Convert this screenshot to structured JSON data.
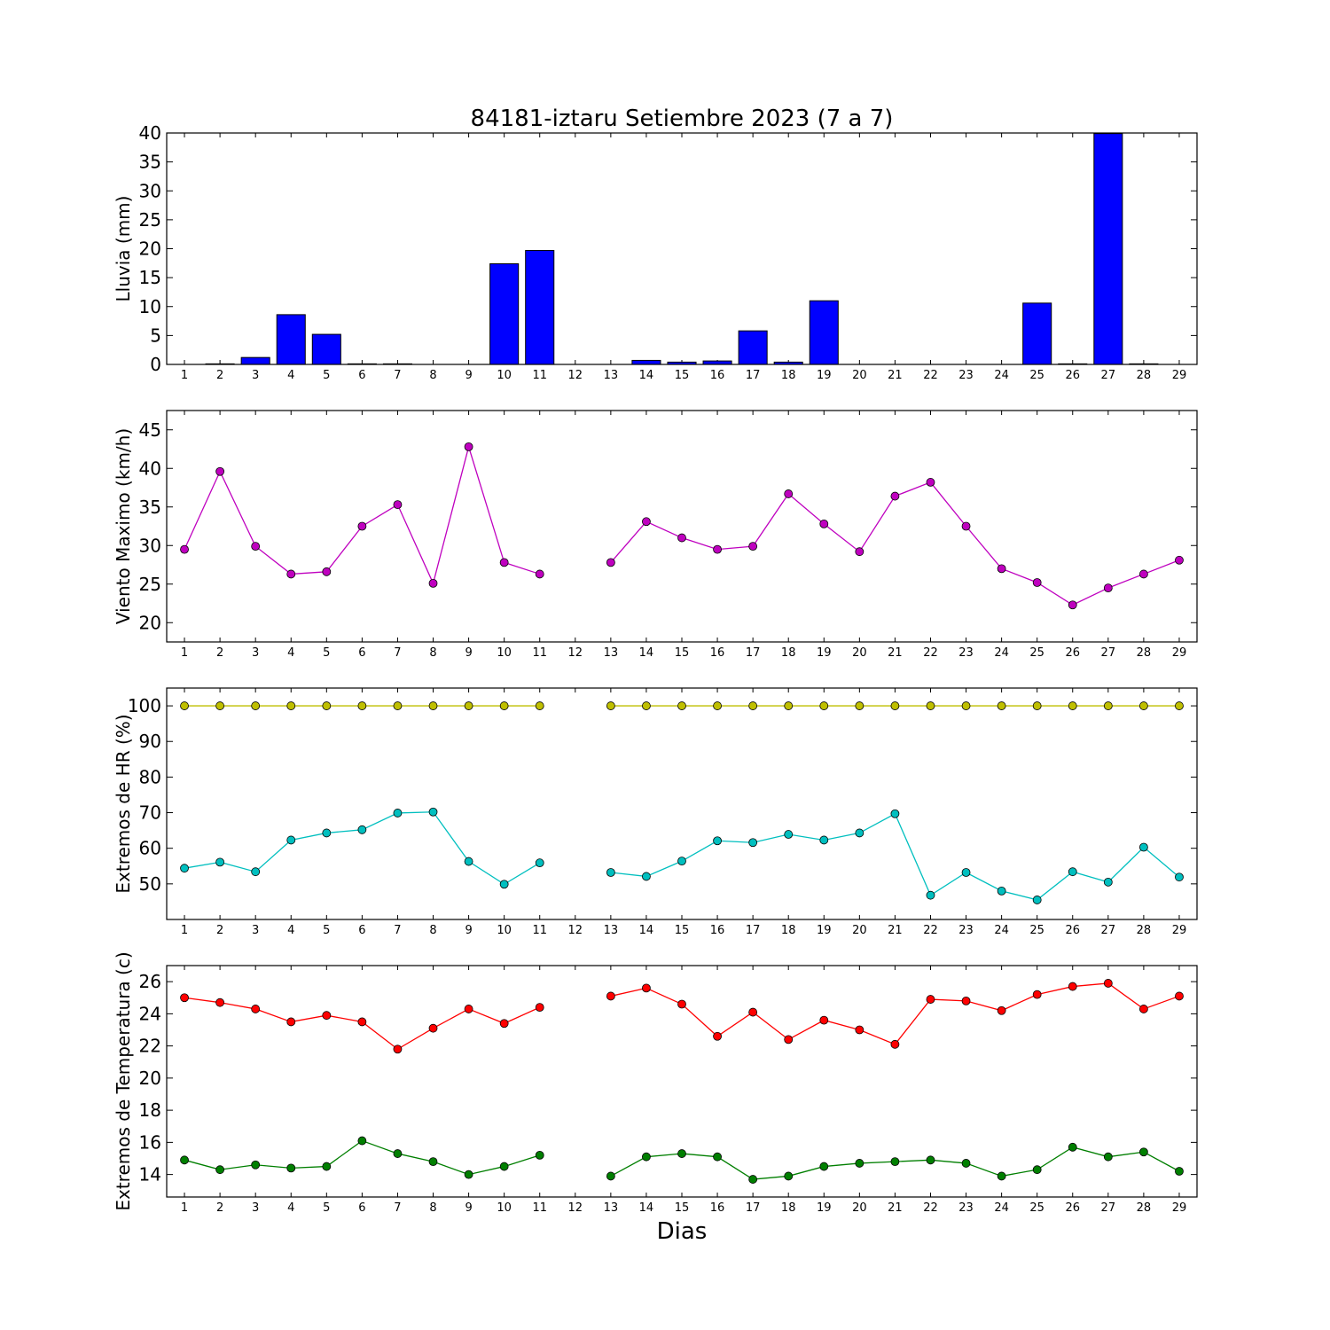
{
  "title": "84181-iztaru Setiembre 2023  (7 a 7)",
  "xlabel": "Dias",
  "chart_data": [
    {
      "type": "bar",
      "ylabel": "Lluvia (mm)",
      "ylim": [
        0,
        40
      ],
      "yticks": [
        0,
        5,
        10,
        15,
        20,
        25,
        30,
        35,
        40
      ],
      "x": [
        1,
        2,
        3,
        4,
        5,
        6,
        7,
        8,
        9,
        10,
        11,
        12,
        13,
        14,
        15,
        16,
        17,
        18,
        19,
        20,
        21,
        22,
        23,
        24,
        25,
        26,
        27,
        28,
        29
      ],
      "series": [
        {
          "color": "#0000ff",
          "values": [
            0,
            0.1,
            1.2,
            8.6,
            5.2,
            0.1,
            0.1,
            0,
            0,
            17.4,
            19.7,
            0,
            0,
            0.7,
            0.4,
            0.6,
            5.8,
            0.4,
            11.0,
            0,
            0,
            0,
            0,
            0,
            10.6,
            0.1,
            39.9,
            0.1,
            0
          ]
        }
      ]
    },
    {
      "type": "line",
      "ylabel": "Viento Maximo (km/h)",
      "ylim": [
        17.5,
        47.5
      ],
      "yticks": [
        20,
        25,
        30,
        35,
        40,
        45
      ],
      "x": [
        1,
        2,
        3,
        4,
        5,
        6,
        7,
        8,
        9,
        10,
        11,
        12,
        13,
        14,
        15,
        16,
        17,
        18,
        19,
        20,
        21,
        22,
        23,
        24,
        25,
        26,
        27,
        28,
        29
      ],
      "series": [
        {
          "color": "#bf00bf",
          "values": [
            29.5,
            39.6,
            29.9,
            26.3,
            26.6,
            32.5,
            35.3,
            25.1,
            42.8,
            27.8,
            26.3,
            null,
            27.8,
            33.1,
            31.0,
            29.5,
            29.9,
            36.7,
            32.8,
            29.2,
            36.4,
            38.2,
            32.5,
            27.0,
            25.2,
            22.3,
            24.5,
            26.3,
            28.1
          ]
        }
      ]
    },
    {
      "type": "line",
      "ylabel": "Extremos de HR (%)",
      "ylim": [
        40,
        105
      ],
      "yticks": [
        50,
        60,
        70,
        80,
        90,
        100
      ],
      "x": [
        1,
        2,
        3,
        4,
        5,
        6,
        7,
        8,
        9,
        10,
        11,
        12,
        13,
        14,
        15,
        16,
        17,
        18,
        19,
        20,
        21,
        22,
        23,
        24,
        25,
        26,
        27,
        28,
        29
      ],
      "series": [
        {
          "color": "#bfbf00",
          "values": [
            100,
            100,
            100,
            100,
            100,
            100,
            100,
            100,
            100,
            100,
            100,
            null,
            100,
            100,
            100,
            100,
            100,
            100,
            100,
            100,
            100,
            100,
            100,
            100,
            100,
            100,
            100,
            100,
            100
          ]
        },
        {
          "color": "#00bfbf",
          "values": [
            54.4,
            56.1,
            53.4,
            62.3,
            64.3,
            65.2,
            69.9,
            70.2,
            56.3,
            49.9,
            55.9,
            null,
            53.2,
            52.1,
            56.4,
            62.1,
            61.6,
            63.9,
            62.3,
            64.3,
            69.7,
            46.8,
            53.2,
            48.0,
            45.5,
            53.4,
            50.5,
            60.3,
            51.9
          ]
        }
      ]
    },
    {
      "type": "line",
      "ylabel": "Extremos de Temperatura (c)",
      "ylim": [
        12.6,
        27.0
      ],
      "yticks": [
        14,
        16,
        18,
        20,
        22,
        24,
        26
      ],
      "x": [
        1,
        2,
        3,
        4,
        5,
        6,
        7,
        8,
        9,
        10,
        11,
        12,
        13,
        14,
        15,
        16,
        17,
        18,
        19,
        20,
        21,
        22,
        23,
        24,
        25,
        26,
        27,
        28,
        29
      ],
      "series": [
        {
          "color": "#ff0000",
          "values": [
            25.0,
            24.7,
            24.3,
            23.5,
            23.9,
            23.5,
            21.8,
            23.1,
            24.3,
            23.4,
            24.4,
            null,
            25.1,
            25.6,
            24.6,
            22.6,
            24.1,
            22.4,
            23.6,
            23.0,
            22.1,
            24.9,
            24.8,
            24.2,
            25.2,
            25.7,
            25.9,
            24.3,
            25.1
          ]
        },
        {
          "color": "#007f00",
          "values": [
            14.9,
            14.3,
            14.6,
            14.4,
            14.5,
            16.1,
            15.3,
            14.8,
            14.0,
            14.5,
            15.2,
            null,
            13.9,
            15.1,
            15.3,
            15.1,
            13.7,
            13.9,
            14.5,
            14.7,
            14.8,
            14.9,
            14.7,
            13.9,
            14.3,
            15.7,
            15.1,
            15.4,
            14.2
          ]
        }
      ]
    }
  ]
}
